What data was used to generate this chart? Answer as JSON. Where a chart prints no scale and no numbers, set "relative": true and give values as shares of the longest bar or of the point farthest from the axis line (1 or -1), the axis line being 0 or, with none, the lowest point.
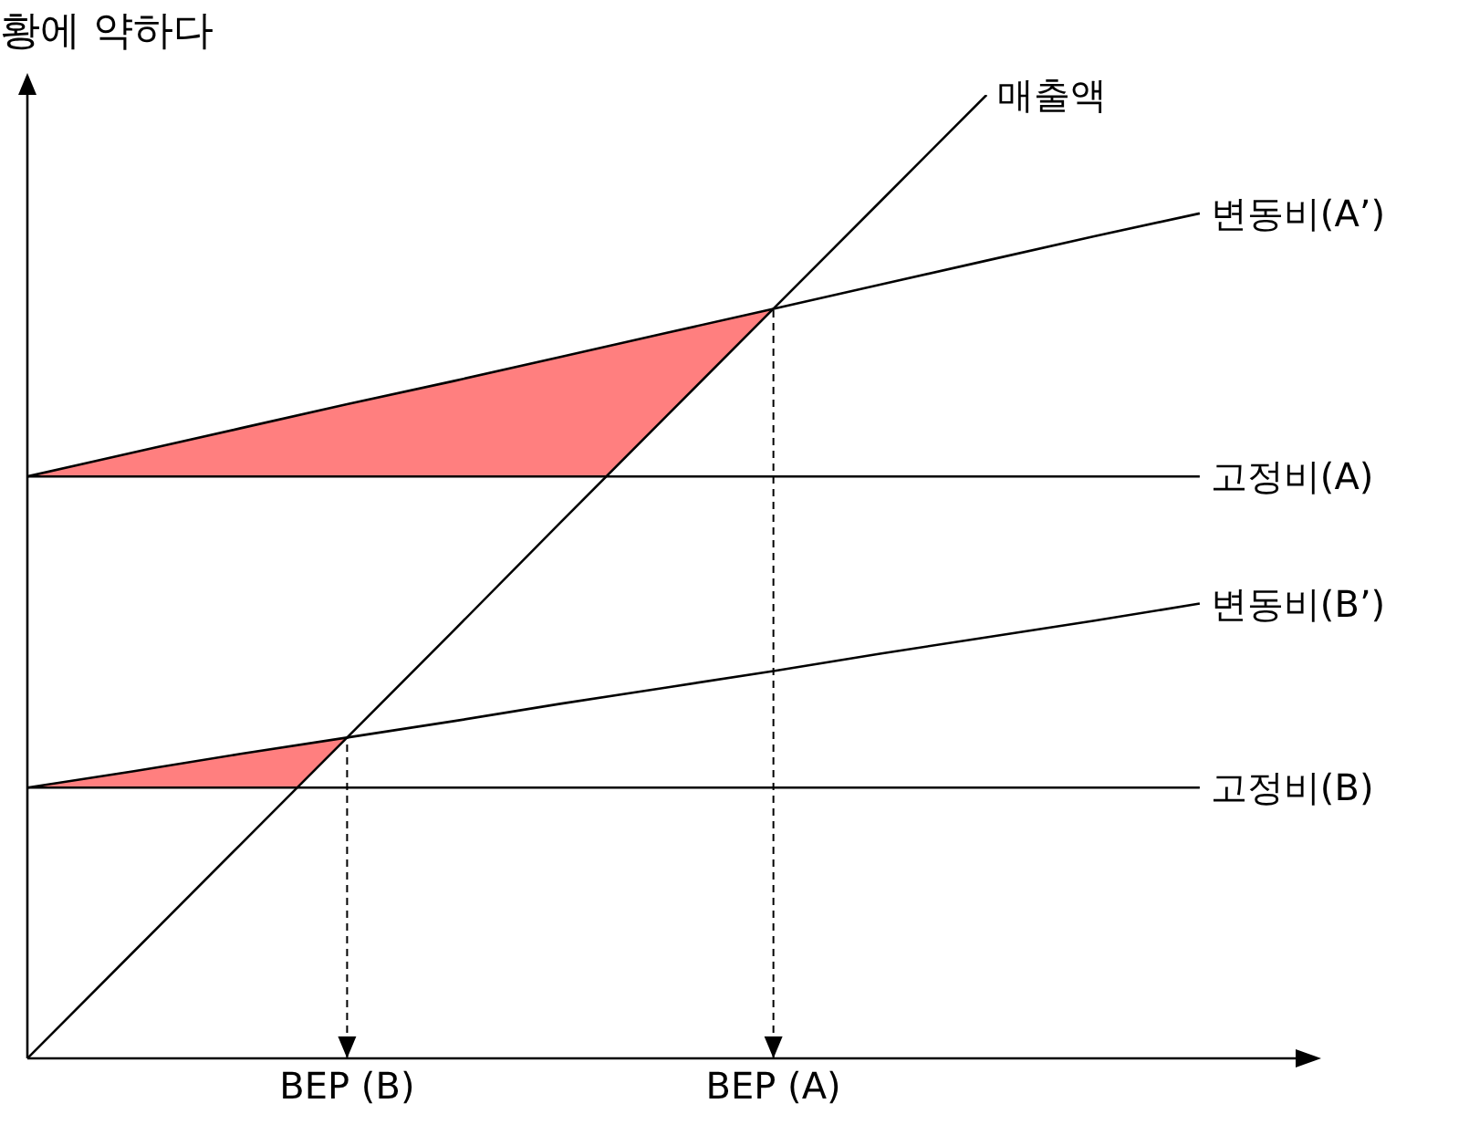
{
  "chart_data": {
    "type": "line",
    "title": "황에 약하다",
    "relative": true,
    "marker": "none",
    "line_style": "solid",
    "categories": [
      null,
      null,
      null,
      "BEP (B)",
      null,
      null,
      null,
      "BEP (A)",
      null,
      null,
      null,
      null
    ],
    "series": [
      {
        "name": "매출액",
        "color": "#000000",
        "values": [
          0,
          0.111,
          0.222,
          0.333,
          0.444,
          0.556,
          0.667,
          0.778,
          0.889,
          1,
          null,
          null
        ]
      },
      {
        "name": "변동비(A’)",
        "color": "#000000",
        "values": [
          0.604,
          0.629,
          0.654,
          0.679,
          0.703,
          0.728,
          0.753,
          0.778,
          0.803,
          0.828,
          0.853,
          0.877
        ]
      },
      {
        "name": "고정비(A)",
        "color": "#000000",
        "values": [
          0.604,
          0.604,
          0.604,
          0.604,
          0.604,
          0.604,
          0.604,
          0.604,
          0.604,
          0.604,
          0.604,
          0.604
        ]
      },
      {
        "name": "변동비(B’)",
        "color": "#000000",
        "values": [
          0.281,
          0.298,
          0.316,
          0.333,
          0.35,
          0.368,
          0.385,
          0.402,
          0.42,
          0.437,
          0.454,
          0.472
        ]
      },
      {
        "name": "고정비(B)",
        "color": "#000000",
        "values": [
          0.281,
          0.281,
          0.281,
          0.281,
          0.281,
          0.281,
          0.281,
          0.281,
          0.281,
          0.281,
          0.281,
          0.281
        ]
      }
    ],
    "ref_lines": [
      {
        "axis": "x",
        "value": "BEP (B)",
        "line_style": "dashed"
      },
      {
        "axis": "x",
        "value": "BEP (A)",
        "line_style": "dashed"
      }
    ]
  }
}
